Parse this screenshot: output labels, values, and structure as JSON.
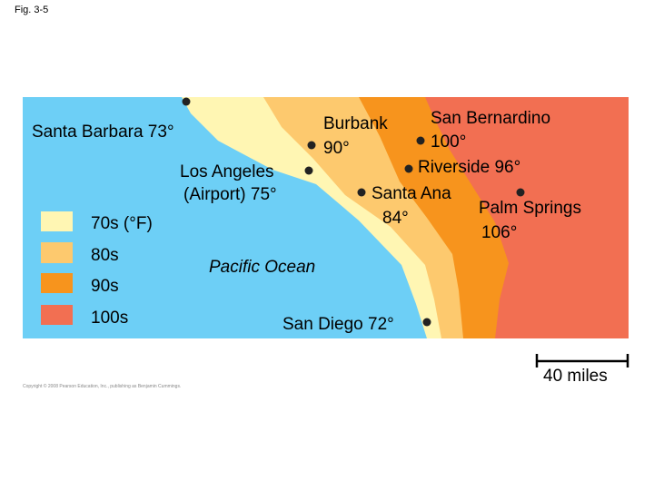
{
  "figure_label": "Fig. 3-5",
  "map": {
    "cities": [
      {
        "lines": [
          "Santa Barbara 73°"
        ]
      },
      {
        "lines": [
          "Burbank",
          "90°"
        ]
      },
      {
        "lines": [
          "San Bernardino",
          "100°"
        ]
      },
      {
        "lines": [
          "Los Angeles",
          "(Airport) 75°"
        ]
      },
      {
        "lines": [
          "Riverside 96°"
        ]
      },
      {
        "lines": [
          "Santa Ana",
          "84°"
        ]
      },
      {
        "lines": [
          "Palm Springs",
          "106°"
        ]
      },
      {
        "lines": [
          "San Diego 72°"
        ]
      }
    ],
    "water_label": "Pacific Ocean"
  },
  "legend": {
    "items": [
      "70s (°F)",
      "80s",
      "90s",
      "100s"
    ]
  },
  "scale_bar": {
    "label": "40 miles"
  },
  "credit": "Copyright © 2008 Pearson Education, Inc., publishing as Benjamin Cummings."
}
